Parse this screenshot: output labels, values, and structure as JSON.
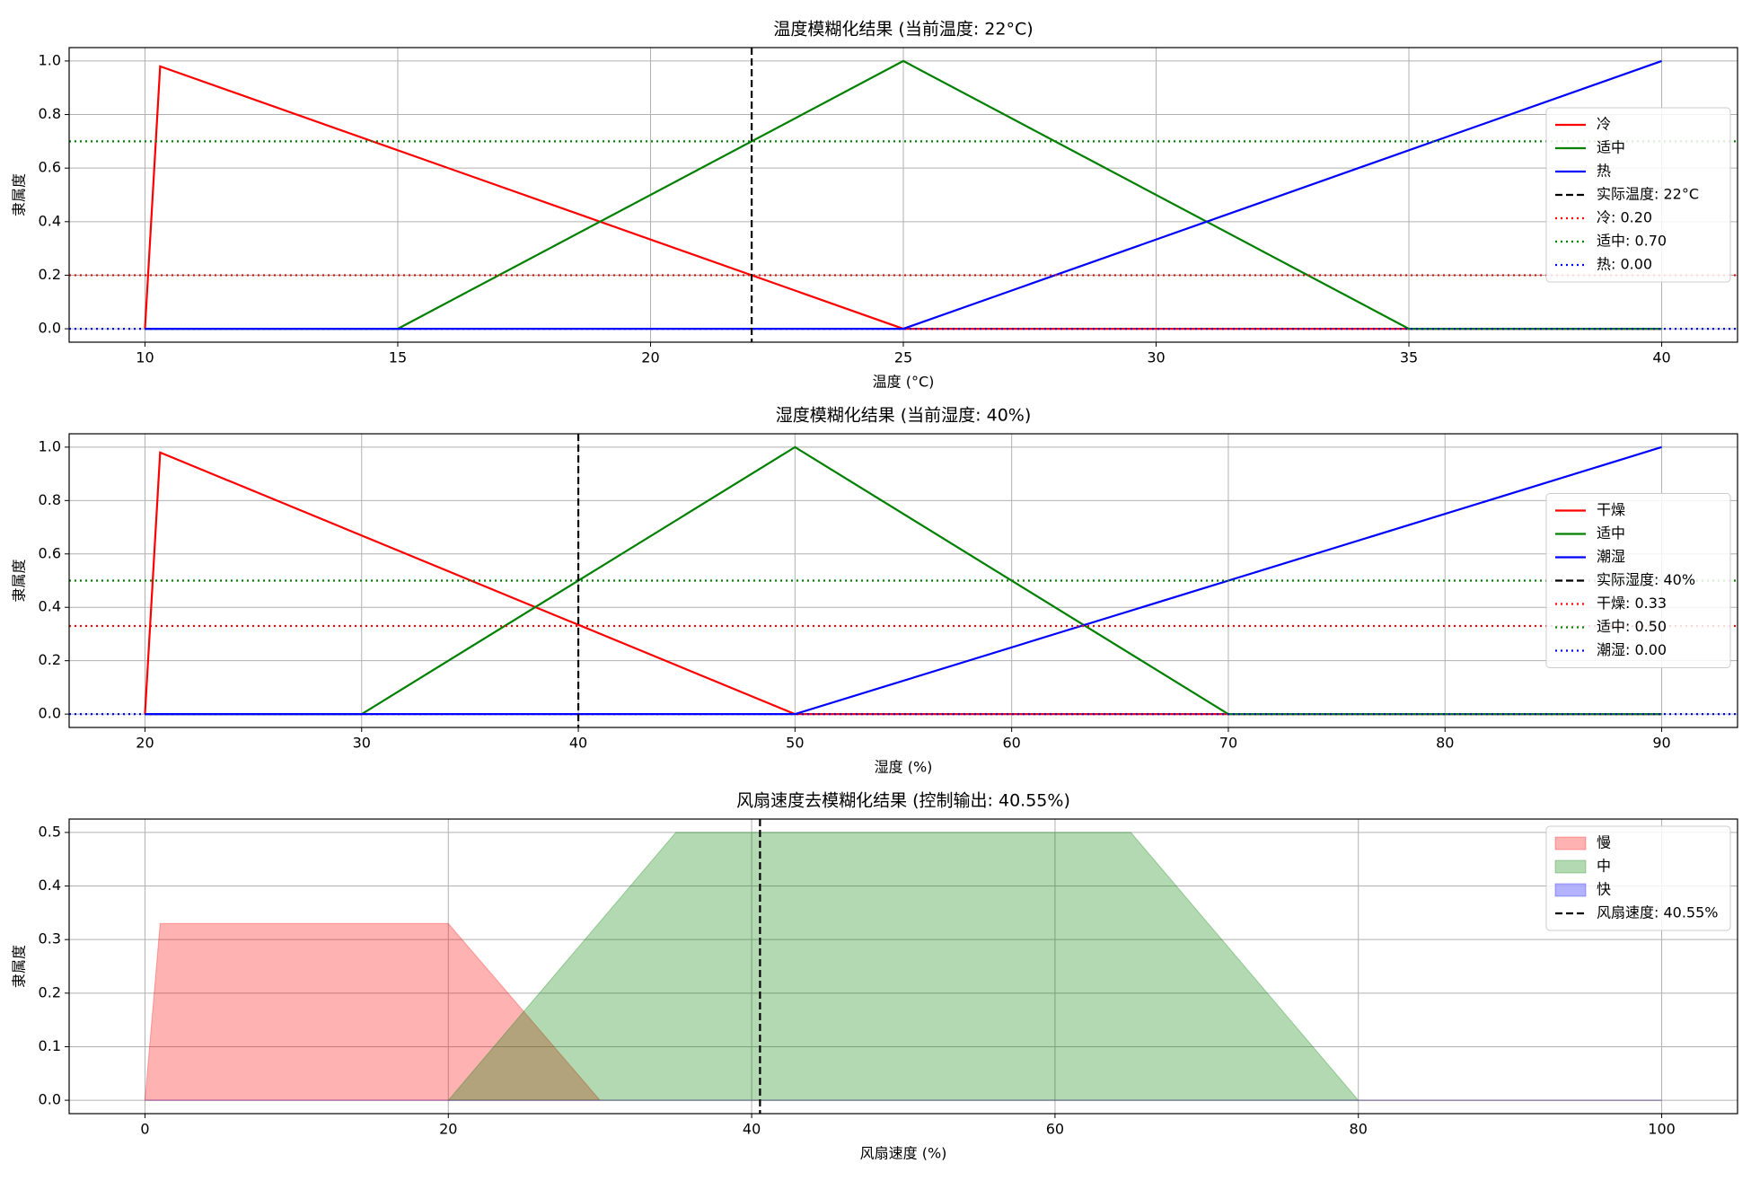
{
  "chart_data": [
    {
      "type": "line",
      "title": "温度模糊化结果 (当前温度: 22°C)",
      "xlabel": "温度 (°C)",
      "ylabel": "隶属度",
      "xlim": [
        8.5,
        41.5
      ],
      "ylim": [
        -0.05,
        1.05
      ],
      "xticks": [
        10,
        15,
        20,
        25,
        30,
        35,
        40
      ],
      "yticks": [
        {
          "value": 0,
          "label": "0.0"
        },
        0.2,
        0.4,
        0.6,
        0.8,
        {
          "value": 1,
          "label": "1.0"
        }
      ],
      "grid": true,
      "legend": "center right",
      "series": [
        {
          "name": "冷",
          "color": "#ff0000",
          "x": [
            10,
            10.3,
            25,
            40
          ],
          "values": [
            0,
            0.98,
            0,
            0
          ]
        },
        {
          "name": "适中",
          "color": "#008000",
          "x": [
            10,
            15,
            25,
            35,
            40
          ],
          "values": [
            0,
            0,
            1,
            0,
            0
          ]
        },
        {
          "name": "热",
          "color": "#0000ff",
          "x": [
            10,
            25,
            40
          ],
          "values": [
            0,
            0,
            1
          ]
        }
      ],
      "vlines": [
        {
          "name": "实际温度: 22°C",
          "color": "#000000",
          "x": 22
        }
      ],
      "hlines": [
        {
          "name": "冷: 0.20",
          "color": "#ff0000",
          "y": 0.2
        },
        {
          "name": "适中: 0.70",
          "color": "#008000",
          "y": 0.7
        },
        {
          "name": "热: 0.00",
          "color": "#0000ff",
          "y": 0
        }
      ]
    },
    {
      "type": "line",
      "title": "湿度模糊化结果 (当前湿度: 40%)",
      "xlabel": "湿度 (%)",
      "ylabel": "隶属度",
      "xlim": [
        16.5,
        93.5
      ],
      "ylim": [
        -0.05,
        1.05
      ],
      "xticks": [
        20,
        30,
        40,
        50,
        60,
        70,
        80,
        90
      ],
      "yticks": [
        {
          "value": 0,
          "label": "0.0"
        },
        0.2,
        0.4,
        0.6,
        0.8,
        {
          "value": 1,
          "label": "1.0"
        }
      ],
      "grid": true,
      "legend": "center right",
      "series": [
        {
          "name": "干燥",
          "color": "#ff0000",
          "x": [
            20,
            20.7,
            50,
            90
          ],
          "values": [
            0,
            0.98,
            0,
            0
          ]
        },
        {
          "name": "适中",
          "color": "#008000",
          "x": [
            20,
            30,
            50,
            70,
            90
          ],
          "values": [
            0,
            0,
            1,
            0,
            0
          ]
        },
        {
          "name": "潮湿",
          "color": "#0000ff",
          "x": [
            20,
            50,
            90
          ],
          "values": [
            0,
            0,
            1
          ]
        }
      ],
      "vlines": [
        {
          "name": "实际湿度: 40%",
          "color": "#000000",
          "x": 40
        }
      ],
      "hlines": [
        {
          "name": "干燥: 0.33",
          "color": "#ff0000",
          "y": 0.33
        },
        {
          "name": "适中: 0.50",
          "color": "#008000",
          "y": 0.5
        },
        {
          "name": "潮湿: 0.00",
          "color": "#0000ff",
          "y": 0
        }
      ]
    },
    {
      "type": "area",
      "title": "风扇速度去模糊化结果 (控制输出: 40.55%)",
      "xlabel": "风扇速度 (%)",
      "ylabel": "隶属度",
      "xlim": [
        -5,
        105
      ],
      "ylim": [
        -0.025,
        0.525
      ],
      "xticks": [
        0,
        20,
        40,
        60,
        80,
        100
      ],
      "yticks": [
        {
          "value": 0,
          "label": "0.0"
        },
        0.1,
        0.2,
        0.3,
        0.4,
        0.5
      ],
      "grid": true,
      "legend": "upper right",
      "alpha": 0.3,
      "series": [
        {
          "name": "慢",
          "color": "#ff0000",
          "x": [
            0,
            1,
            20,
            30,
            100
          ],
          "values": [
            0,
            0.33,
            0.33,
            0,
            0
          ]
        },
        {
          "name": "中",
          "color": "#008000",
          "x": [
            20,
            35,
            65,
            80,
            100
          ],
          "values": [
            0,
            0.5,
            0.5,
            0,
            0
          ]
        },
        {
          "name": "快",
          "color": "#0000ff",
          "x": [
            0,
            100
          ],
          "values": [
            0,
            0
          ]
        }
      ],
      "vlines": [
        {
          "name": "风扇速度: 40.55%",
          "color": "#000000",
          "x": 40.55
        }
      ],
      "hlines": []
    }
  ]
}
